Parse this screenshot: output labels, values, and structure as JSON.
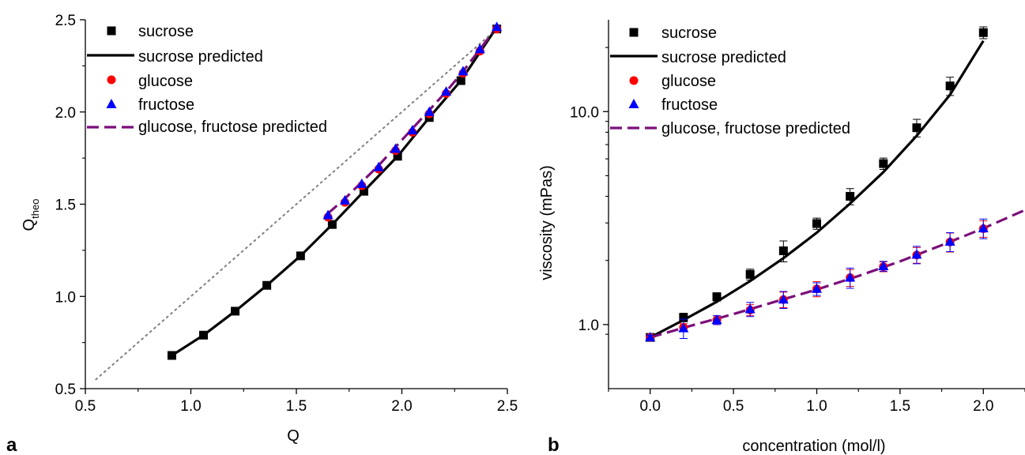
{
  "colors": {
    "sucrose": "#000000",
    "glucose": "#ff0000",
    "fructose": "#0000ff",
    "predicted_dashed": "#7b0f7b",
    "identity_line": "#808080"
  },
  "chart_data": [
    {
      "panel_label": "a",
      "type": "scatter",
      "xlabel": "Q",
      "ylabel_main": "Q",
      "ylabel_sub": "theo",
      "xlim": [
        0.5,
        2.5
      ],
      "ylim": [
        0.5,
        2.5
      ],
      "xticks": [
        0.5,
        1.0,
        1.5,
        2.0,
        2.5
      ],
      "yticks": [
        0.5,
        1.0,
        1.5,
        2.0,
        2.5
      ],
      "xtick_labels": [
        "0.5",
        "1.0",
        "1.5",
        "2.0",
        "2.5"
      ],
      "ytick_labels": [
        "0.5",
        "1.0",
        "1.5",
        "2.0",
        "2.5"
      ],
      "grid": false,
      "legend_position": "top-left",
      "reference_line": {
        "style": "dotted",
        "x": [
          0.55,
          2.45
        ],
        "y": [
          0.55,
          2.45
        ]
      },
      "series": [
        {
          "name": "sucrose",
          "kind": "points",
          "marker": "square",
          "color": "#000000",
          "x": [
            0.91,
            1.06,
            1.21,
            1.36,
            1.52,
            1.67,
            1.82,
            1.98,
            2.13,
            2.28,
            2.45
          ],
          "y": [
            0.68,
            0.79,
            0.92,
            1.06,
            1.22,
            1.39,
            1.57,
            1.76,
            1.97,
            2.17,
            2.45
          ]
        },
        {
          "name": "sucrose predicted",
          "kind": "line",
          "dash": "solid",
          "color": "#000000",
          "x": [
            0.91,
            1.06,
            1.21,
            1.36,
            1.52,
            1.67,
            1.82,
            1.98,
            2.13,
            2.28,
            2.45
          ],
          "y": [
            0.68,
            0.79,
            0.92,
            1.06,
            1.22,
            1.39,
            1.57,
            1.76,
            1.97,
            2.17,
            2.46
          ]
        },
        {
          "name": "glucose",
          "kind": "points",
          "marker": "circle",
          "color": "#ff0000",
          "x": [
            1.65,
            1.73,
            1.81,
            1.89,
            1.97,
            2.05,
            2.13,
            2.21,
            2.29,
            2.37,
            2.45
          ],
          "y": [
            1.43,
            1.51,
            1.6,
            1.69,
            1.79,
            1.89,
            1.99,
            2.1,
            2.21,
            2.33,
            2.45
          ]
        },
        {
          "name": "fructose",
          "kind": "points",
          "marker": "triangle",
          "color": "#0000ff",
          "x": [
            1.65,
            1.73,
            1.81,
            1.89,
            1.97,
            2.05,
            2.13,
            2.21,
            2.29,
            2.37,
            2.45
          ],
          "y": [
            1.44,
            1.52,
            1.61,
            1.7,
            1.8,
            1.9,
            2.0,
            2.11,
            2.22,
            2.34,
            2.46
          ]
        },
        {
          "name": "glucose, fructose predicted",
          "kind": "line",
          "dash": "dashed",
          "color": "#7b0f7b",
          "x": [
            1.65,
            1.73,
            1.81,
            1.89,
            1.97,
            2.05,
            2.13,
            2.21,
            2.29,
            2.37,
            2.45
          ],
          "y": [
            1.45,
            1.53,
            1.62,
            1.71,
            1.81,
            1.91,
            2.01,
            2.11,
            2.22,
            2.34,
            2.46
          ]
        }
      ]
    },
    {
      "panel_label": "b",
      "type": "scatter",
      "xlabel": "concentration (mol/l)",
      "ylabel": "viscosity (mPas)",
      "yscale": "log",
      "xlim": [
        -0.25,
        2.25
      ],
      "ylim": [
        0.5,
        27
      ],
      "xticks": [
        0.0,
        0.5,
        1.0,
        1.5,
        2.0
      ],
      "xtick_labels": [
        "0.0",
        "0.5",
        "1.0",
        "1.5",
        "2.0"
      ],
      "yticks": [
        1.0,
        10.0
      ],
      "ytick_labels": [
        "1.0",
        "10.0"
      ],
      "grid": false,
      "legend_position": "top-left",
      "series": [
        {
          "name": "sucrose",
          "kind": "points",
          "marker": "square",
          "color": "#000000",
          "x": [
            0.0,
            0.2,
            0.4,
            0.6,
            0.8,
            1.0,
            1.2,
            1.4,
            1.6,
            1.8,
            2.0
          ],
          "y": [
            0.87,
            1.08,
            1.35,
            1.72,
            2.22,
            2.98,
            4.0,
            5.7,
            8.4,
            13.2,
            23.5
          ],
          "err": [
            0.03,
            0.05,
            0.06,
            0.1,
            0.25,
            0.18,
            0.35,
            0.35,
            0.8,
            1.3,
            1.5
          ]
        },
        {
          "name": "sucrose predicted",
          "kind": "line",
          "dash": "solid",
          "color": "#000000",
          "x": [
            0.0,
            0.2,
            0.4,
            0.6,
            0.8,
            1.0,
            1.2,
            1.4,
            1.6,
            1.8,
            2.0
          ],
          "y": [
            0.87,
            1.05,
            1.28,
            1.6,
            2.05,
            2.7,
            3.7,
            5.2,
            7.7,
            12.0,
            21.5
          ]
        },
        {
          "name": "glucose",
          "kind": "points",
          "marker": "circle",
          "color": "#ff0000",
          "x": [
            0.0,
            0.2,
            0.4,
            0.6,
            0.8,
            1.0,
            1.2,
            1.4,
            1.6,
            1.8,
            2.0
          ],
          "y": [
            0.87,
            0.97,
            1.05,
            1.17,
            1.31,
            1.47,
            1.66,
            1.87,
            2.12,
            2.44,
            2.82
          ],
          "err": [
            0.02,
            0.04,
            0.05,
            0.07,
            0.11,
            0.12,
            0.15,
            0.1,
            0.18,
            0.25,
            0.25
          ]
        },
        {
          "name": "fructose",
          "kind": "points",
          "marker": "triangle",
          "color": "#0000ff",
          "x": [
            0.0,
            0.2,
            0.4,
            0.6,
            0.8,
            1.0,
            1.2,
            1.4,
            1.6,
            1.8,
            2.0
          ],
          "y": [
            0.87,
            0.96,
            1.05,
            1.18,
            1.31,
            1.47,
            1.66,
            1.88,
            2.13,
            2.45,
            2.83
          ],
          "err": [
            0.02,
            0.1,
            0.05,
            0.09,
            0.12,
            0.1,
            0.18,
            0.1,
            0.2,
            0.25,
            0.3
          ]
        },
        {
          "name": "glucose, fructose predicted",
          "kind": "line",
          "dash": "dashed",
          "color": "#7b0f7b",
          "x": [
            0.0,
            0.25,
            0.5,
            0.75,
            1.0,
            1.25,
            1.5,
            1.75,
            2.0,
            2.25
          ],
          "y": [
            0.87,
            0.99,
            1.12,
            1.28,
            1.46,
            1.69,
            1.98,
            2.36,
            2.83,
            3.45
          ]
        }
      ]
    }
  ]
}
